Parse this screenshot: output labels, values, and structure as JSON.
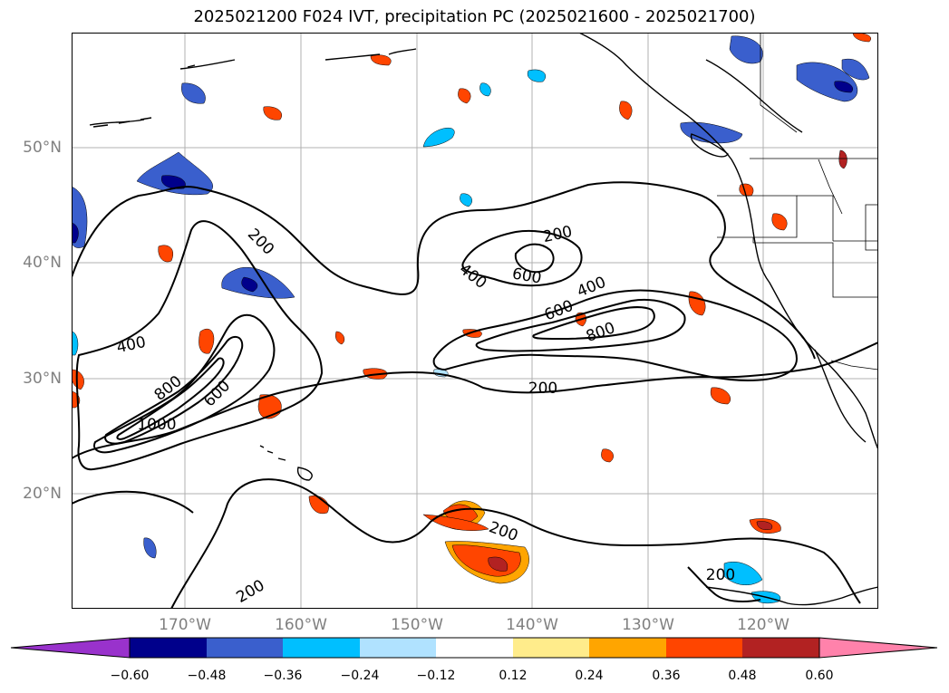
{
  "title": "2025021200 F024 IVT, precipitation PC (2025021600 - 2025021700)",
  "lat_labels": [
    "50°N",
    "40°N",
    "30°N",
    "20°N"
  ],
  "lon_labels": [
    "170°W",
    "160°W",
    "150°W",
    "140°W",
    "130°W",
    "120°W"
  ],
  "ivt_contour_labels": [
    {
      "text": "200"
    },
    {
      "text": "200"
    },
    {
      "text": "200"
    },
    {
      "text": "200"
    },
    {
      "text": "200"
    },
    {
      "text": "200"
    },
    {
      "text": "400"
    },
    {
      "text": "400"
    },
    {
      "text": "400"
    },
    {
      "text": "600"
    },
    {
      "text": "600"
    },
    {
      "text": "600"
    },
    {
      "text": "800"
    },
    {
      "text": "800"
    },
    {
      "text": "1000"
    }
  ],
  "colorbar": {
    "tick_labels": [
      "−0.60",
      "−0.48",
      "−0.36",
      "−0.24",
      "−0.12",
      "0.12",
      "0.24",
      "0.36",
      "0.48",
      "0.60"
    ],
    "colors": [
      "#9932cc",
      "#00008b",
      "#3a5fcd",
      "#00bfff",
      "#b0e2ff",
      "#ffffff",
      "#ffec8b",
      "#ffa500",
      "#ff4500",
      "#b22222",
      "#ff82ab"
    ]
  }
}
